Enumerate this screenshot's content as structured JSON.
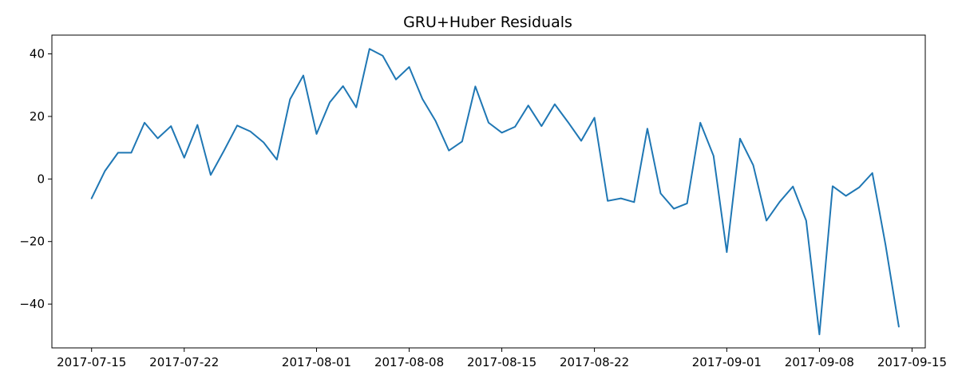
{
  "chart_data": {
    "type": "line",
    "title": "GRU+Huber Residuals",
    "xlabel": "",
    "ylabel": "",
    "x_axis_type": "date",
    "xlim": [
      "2017-07-12",
      "2017-09-16"
    ],
    "ylim": [
      -54,
      46
    ],
    "grid": false,
    "x_ticks": [
      "2017-07-15",
      "2017-07-22",
      "2017-08-01",
      "2017-08-08",
      "2017-08-15",
      "2017-08-22",
      "2017-09-01",
      "2017-09-08",
      "2017-09-15"
    ],
    "y_ticks": [
      40,
      20,
      0,
      -20,
      -40
    ],
    "y_tick_labels": [
      "40",
      "20",
      "0",
      "−20",
      "−40"
    ],
    "colors": {
      "line": "#1f77b4",
      "axis": "#000000"
    },
    "series": [
      {
        "x": [
          "2017-07-15",
          "2017-07-16",
          "2017-07-17",
          "2017-07-18",
          "2017-07-19",
          "2017-07-20",
          "2017-07-21",
          "2017-07-22",
          "2017-07-23",
          "2017-07-24",
          "2017-07-25",
          "2017-07-26",
          "2017-07-27",
          "2017-07-28",
          "2017-07-29",
          "2017-07-30",
          "2017-07-31",
          "2017-08-01",
          "2017-08-02",
          "2017-08-03",
          "2017-08-04",
          "2017-08-05",
          "2017-08-06",
          "2017-08-07",
          "2017-08-08",
          "2017-08-09",
          "2017-08-10",
          "2017-08-11",
          "2017-08-12",
          "2017-08-13",
          "2017-08-14",
          "2017-08-15",
          "2017-08-16",
          "2017-08-17",
          "2017-08-18",
          "2017-08-19",
          "2017-08-20",
          "2017-08-21",
          "2017-08-22",
          "2017-08-23",
          "2017-08-24",
          "2017-08-25",
          "2017-08-26",
          "2017-08-27",
          "2017-08-28",
          "2017-08-29",
          "2017-08-30",
          "2017-08-31",
          "2017-09-01",
          "2017-09-02",
          "2017-09-03",
          "2017-09-04",
          "2017-09-05",
          "2017-09-06",
          "2017-09-07",
          "2017-09-08",
          "2017-09-09",
          "2017-09-10",
          "2017-09-11",
          "2017-09-12",
          "2017-09-13",
          "2017-09-14"
        ],
        "values": [
          -6.2,
          2.5,
          8.4,
          8.4,
          18.0,
          13.0,
          16.9,
          6.8,
          17.3,
          1.3,
          9.0,
          17.1,
          15.2,
          11.7,
          6.2,
          25.5,
          33.1,
          14.4,
          24.5,
          29.7,
          22.9,
          41.6,
          39.4,
          31.8,
          35.8,
          25.6,
          18.5,
          9.1,
          12.0,
          29.6,
          18.0,
          14.8,
          16.7,
          23.5,
          16.9,
          23.9,
          18.2,
          12.2,
          19.6,
          -7.0,
          -6.2,
          -7.4,
          16.1,
          -4.6,
          -9.5,
          -7.8,
          18.0,
          7.4,
          -23.4,
          12.9,
          4.4,
          -13.3,
          -7.3,
          -2.4,
          -13.3,
          -49.7,
          -2.3,
          -5.4,
          -2.7,
          1.9,
          -21.1,
          -47.2
        ]
      }
    ]
  }
}
